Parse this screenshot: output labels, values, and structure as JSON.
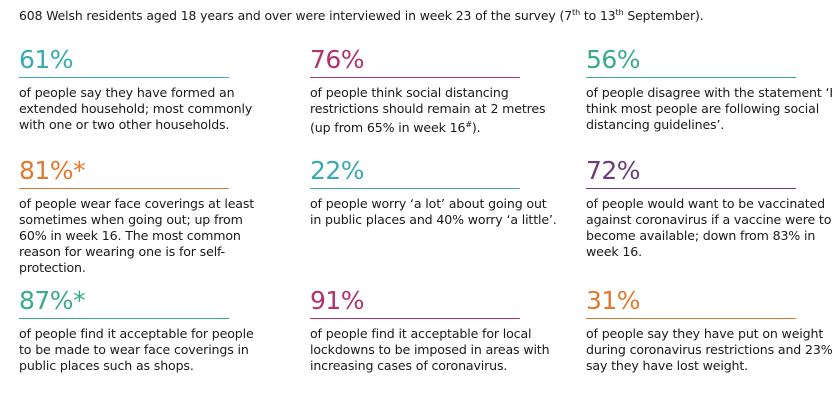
{
  "intro": {
    "text_a": "608 Welsh residents aged 18 years and over were interviewed in week 23 of the survey (7",
    "sup_a": "th",
    "text_b": " to 13",
    "sup_b": "th",
    "text_c": " September)."
  },
  "stats": [
    {
      "pct": "61%",
      "color": "#3aaab0",
      "desc": "of people say they have formed an extended household; most commonly with one or two other households."
    },
    {
      "pct": "76%",
      "color": "#b0326e",
      "desc_a": "of people think social distancing restrictions should remain at 2 metres (up from 65% in week 16",
      "desc_sup": "#",
      "desc_b": ")."
    },
    {
      "pct": "56%",
      "color": "#3aab8a",
      "desc": "of people disagree with the statement ‘I think most people are following social distancing guidelines’."
    },
    {
      "pct": "81%*",
      "color": "#e07a30",
      "desc": "of people wear face coverings at least sometimes when going out; up from 60% in week 16. The most common reason for wearing one is for self-protection."
    },
    {
      "pct": "22%",
      "color": "#3aaab0",
      "desc": "of people worry ‘a lot’ about going out in public places and 40% worry ‘a little’."
    },
    {
      "pct": "72%",
      "color": "#6b3d7a",
      "desc": "of people would want to be vaccinated against coronavirus if a vaccine were to become available; down from 83% in week 16."
    },
    {
      "pct": "87%*",
      "color": "#3aab8a",
      "desc": "of people find it acceptable for people to be made to wear face coverings in public places such as shops."
    },
    {
      "pct": "91%",
      "color": "#b0326e",
      "desc": "of people find it acceptable for local lockdowns to be imposed in areas with increasing cases of coronavirus."
    },
    {
      "pct": "31%",
      "color": "#e07a30",
      "desc": "of people say they have put on weight during coronavirus restrictions and 23% say they have lost weight."
    }
  ]
}
